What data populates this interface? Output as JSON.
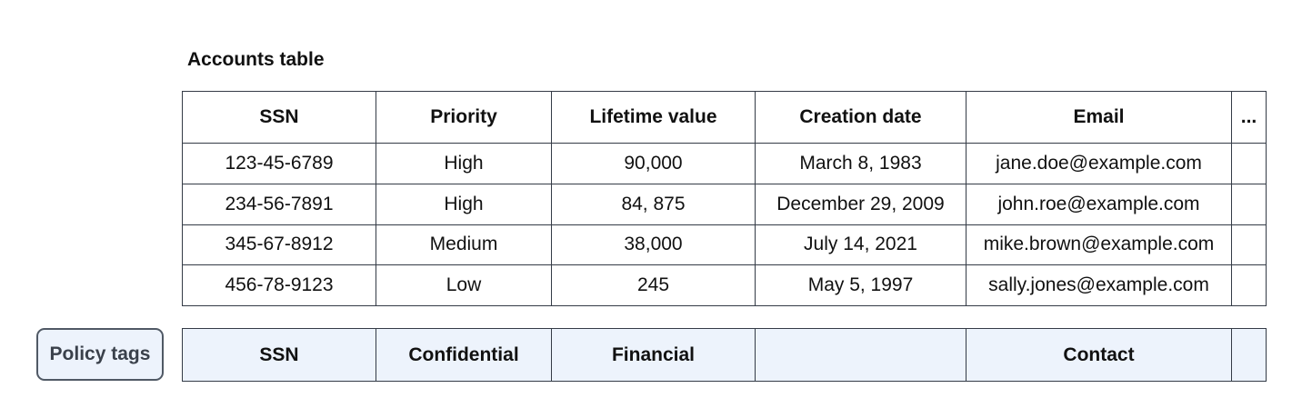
{
  "title": "Accounts table",
  "accounts_table": {
    "columns": [
      "SSN",
      "Priority",
      "Lifetime value",
      "Creation date",
      "Email",
      "..."
    ],
    "rows": [
      [
        "123-45-6789",
        "High",
        "90,000",
        "March 8, 1983",
        "jane.doe@example.com",
        ""
      ],
      [
        "234-56-7891",
        "High",
        "84, 875",
        "December 29, 2009",
        "john.roe@example.com",
        ""
      ],
      [
        "345-67-8912",
        "Medium",
        "38,000",
        "July 14, 2021",
        "mike.brown@example.com",
        ""
      ],
      [
        "456-78-9123",
        "Low",
        "245",
        "May 5, 1997",
        "sally.jones@example.com",
        ""
      ]
    ]
  },
  "policy_tags": {
    "label": "Policy tags",
    "tags": [
      "SSN",
      "Confidential",
      "Financial",
      "",
      "Contact",
      ""
    ]
  },
  "colors": {
    "table_border": "#343b46",
    "tag_row_bg": "#edf3fc",
    "button_bg": "#edf3fc",
    "button_border": "#505965",
    "button_text": "#3a414b",
    "text": "#111111",
    "page_bg": "#ffffff"
  }
}
